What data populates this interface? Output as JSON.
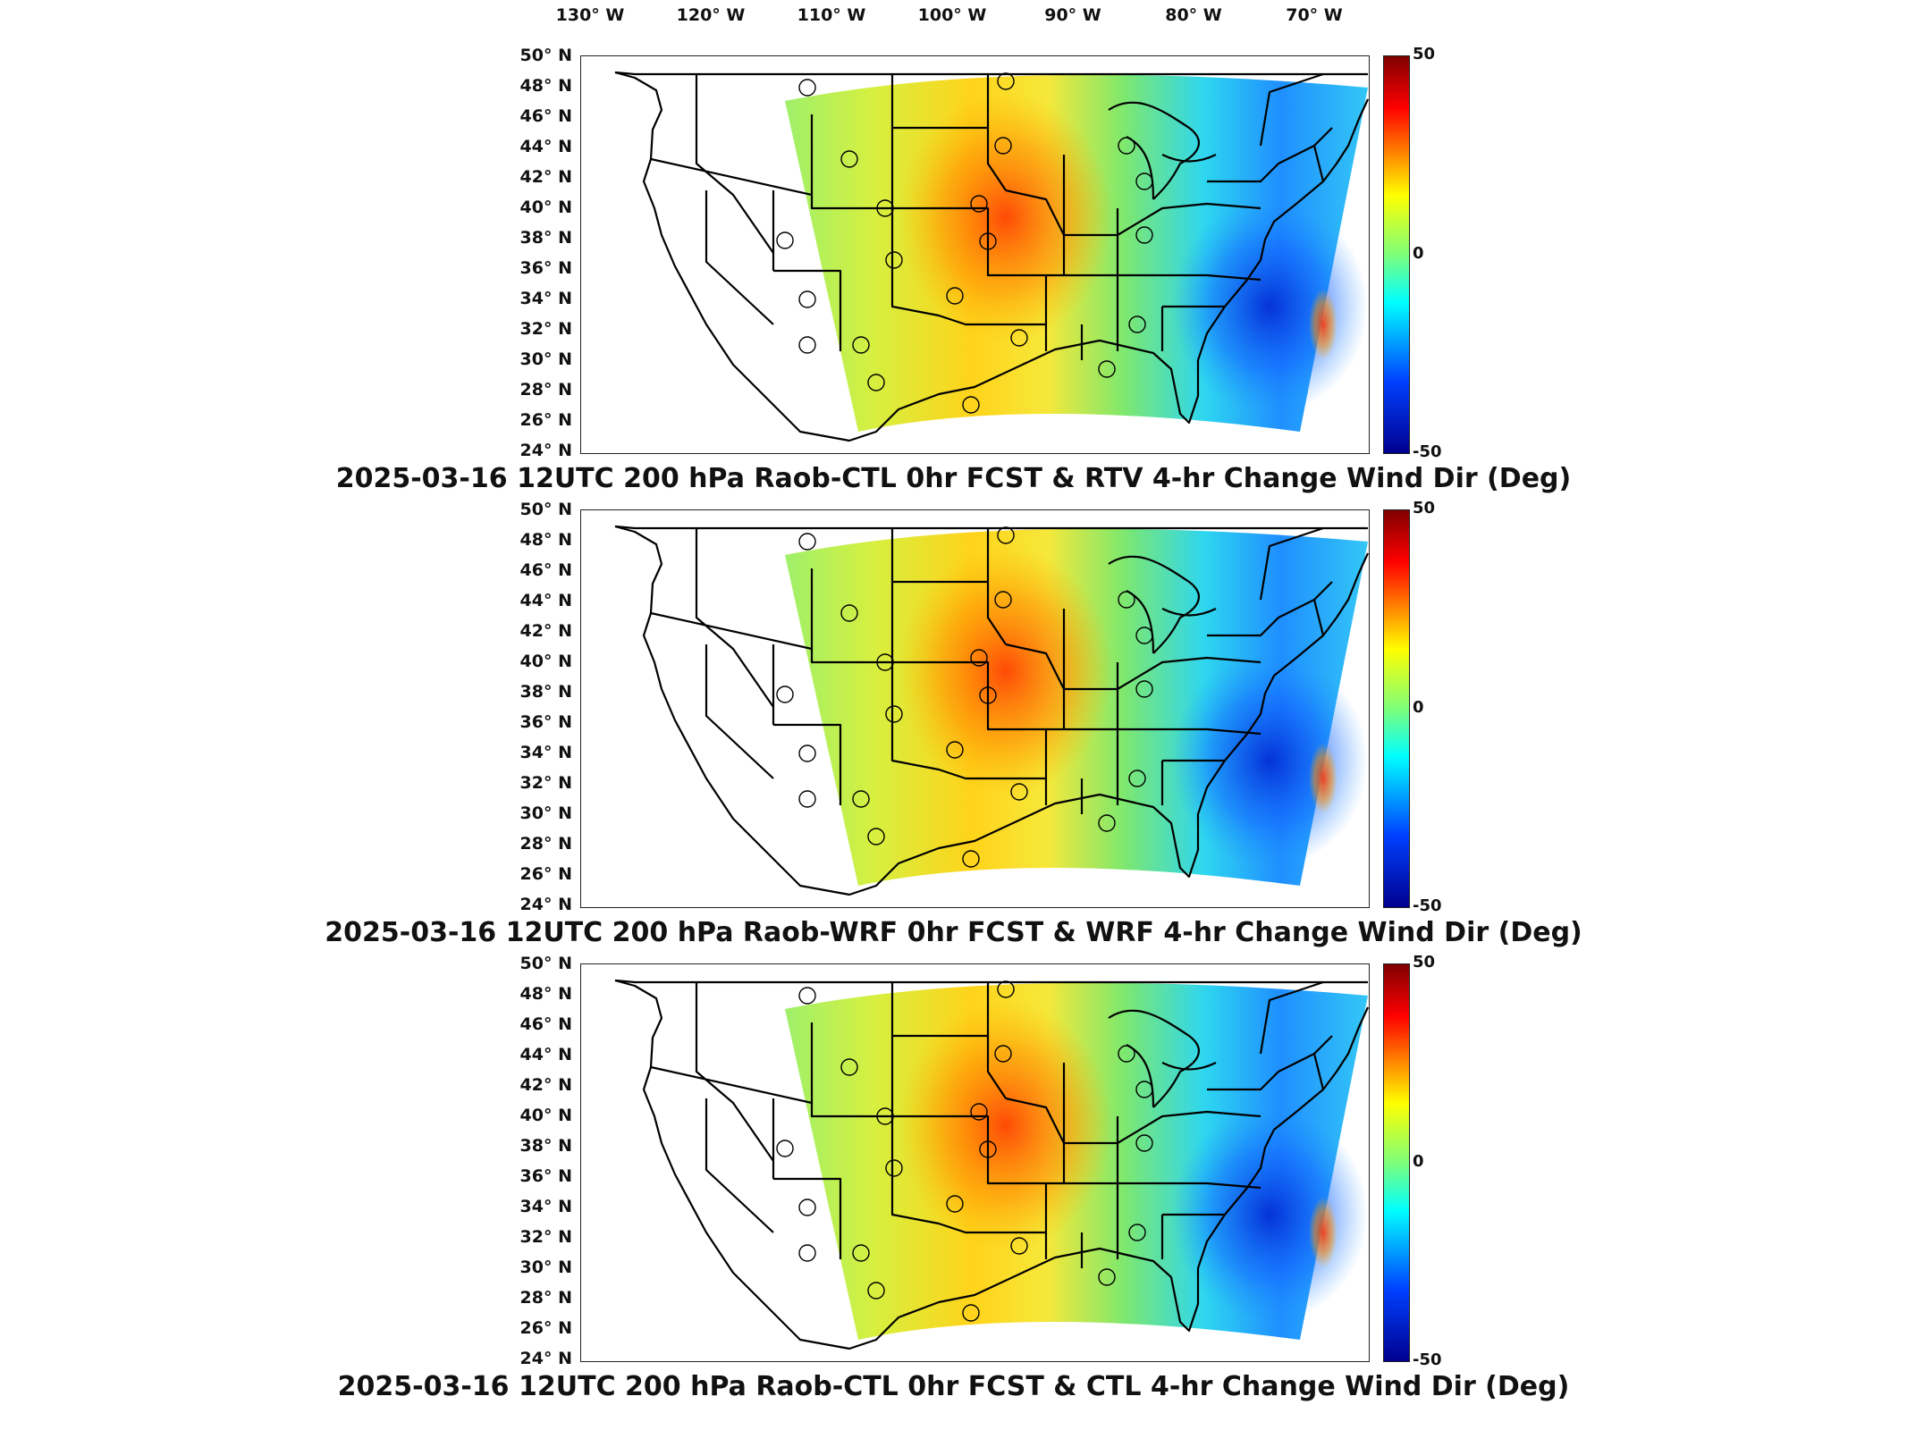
{
  "longitude_labels": [
    "130° W",
    "120° W",
    "110° W",
    "100° W",
    "90° W",
    "80° W",
    "70° W"
  ],
  "latitude_labels": [
    "50° N",
    "48° N",
    "46° N",
    "44° N",
    "42° N",
    "40° N",
    "38° N",
    "36° N",
    "34° N",
    "32° N",
    "30° N",
    "28° N",
    "26° N",
    "24° N"
  ],
  "colorbar": {
    "max": "50",
    "mid": "0",
    "min": "-50",
    "colors": [
      "#800000",
      "#ff0000",
      "#ffff00",
      "#7dff7a",
      "#00ffff",
      "#0040ff",
      "#00008f"
    ]
  },
  "panels": [
    {
      "title": "2025-03-16 12UTC 200 hPa Raob-CTL 0hr FCST & RTV 4-hr Change Wind Dir (Deg)"
    },
    {
      "title": "2025-03-16 12UTC 200 hPa Raob-WRF 0hr FCST & WRF 4-hr Change Wind Dir (Deg)"
    },
    {
      "title": "2025-03-16 12UTC 200 hPa Raob-CTL 0hr FCST & CTL 4-hr Change Wind Dir (Deg)"
    }
  ]
}
